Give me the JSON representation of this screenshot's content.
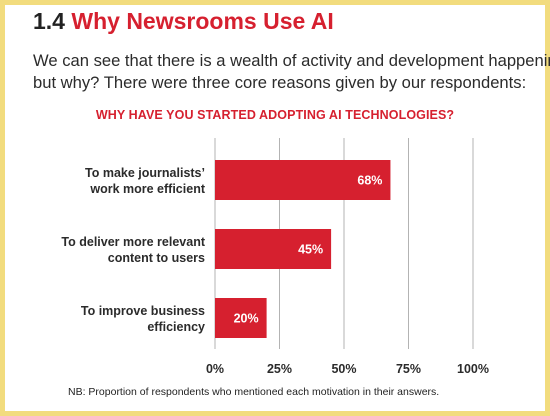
{
  "header": {
    "number": "1.4",
    "title": "Why Newsrooms Use AI"
  },
  "intro": {
    "line1": "We can see that there is a wealth of activity and development happening,",
    "line2": "but why? There were three core reasons given by our respondents:"
  },
  "footnote": "NB: Proportion of respondents who mentioned each motivation in their answers.",
  "colors": {
    "accent": "#d6202f",
    "bar": "#d6202f",
    "frame": "#f2dc7e",
    "grid": "#b3b3b3"
  },
  "chart_data": {
    "type": "bar",
    "orientation": "horizontal",
    "title": "WHY HAVE YOU STARTED ADOPTING AI TECHNOLOGIES?",
    "categories": [
      [
        "To make journalists’",
        "work more efficient"
      ],
      [
        "To deliver more relevant",
        "content to users"
      ],
      [
        "To improve business",
        "efficiency"
      ]
    ],
    "values": [
      68,
      45,
      20
    ],
    "value_labels": [
      "68%",
      "45%",
      "20%"
    ],
    "xlim": [
      0,
      100
    ],
    "xticks": [
      0,
      25,
      50,
      75,
      100
    ],
    "xtick_labels": [
      "0%",
      "25%",
      "50%",
      "75%",
      "100%"
    ],
    "grid": true
  }
}
